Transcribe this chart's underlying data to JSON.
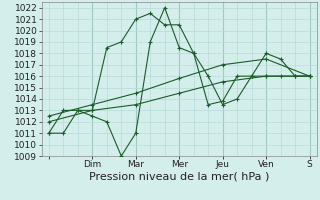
{
  "xlabel": "Pression niveau de la mer( hPa )",
  "bg_color": "#d4eeec",
  "grid_color": "#b8dbd8",
  "vgrid_color": "#a0c8c4",
  "line_color": "#1a5c28",
  "ylim": [
    1009,
    1022.5
  ],
  "yticks": [
    1009,
    1010,
    1011,
    1012,
    1013,
    1014,
    1015,
    1016,
    1017,
    1018,
    1019,
    1020,
    1021,
    1022
  ],
  "x_tick_labels": [
    "",
    "Dim",
    "Mar",
    "Mer",
    "Jeu",
    "Ven",
    "S"
  ],
  "x_tick_positions": [
    0,
    24,
    48,
    72,
    96,
    120,
    144
  ],
  "lines": [
    {
      "x": [
        0,
        8,
        16,
        24,
        32,
        40,
        48,
        56,
        64,
        72,
        80,
        88,
        96,
        104,
        112,
        120,
        128,
        136,
        144
      ],
      "y": [
        1011,
        1011,
        1013,
        1013,
        1018.5,
        1019,
        1021,
        1021.5,
        1020.5,
        1020.5,
        1018,
        1013.5,
        1013.8,
        1016,
        1016,
        1018,
        1017.5,
        1016,
        1016
      ]
    },
    {
      "x": [
        0,
        8,
        16,
        24,
        32,
        40,
        48,
        56,
        64,
        72,
        80,
        88,
        96,
        104,
        112,
        120,
        128,
        136,
        144
      ],
      "y": [
        1011,
        1013,
        1013,
        1012.5,
        1012,
        1009,
        1011,
        1019,
        1022,
        1018.5,
        1018,
        1016,
        1013.5,
        1014,
        1016,
        1016,
        1016,
        1016,
        1016
      ]
    },
    {
      "x": [
        0,
        24,
        48,
        72,
        96,
        120,
        144
      ],
      "y": [
        1012,
        1013,
        1013.5,
        1014.5,
        1015.5,
        1016,
        1016
      ]
    },
    {
      "x": [
        0,
        24,
        48,
        72,
        96,
        120,
        144
      ],
      "y": [
        1012.5,
        1013.5,
        1014.5,
        1015.8,
        1017,
        1017.5,
        1016
      ]
    }
  ],
  "xlabel_fontsize": 8,
  "tick_fontsize": 6.5
}
